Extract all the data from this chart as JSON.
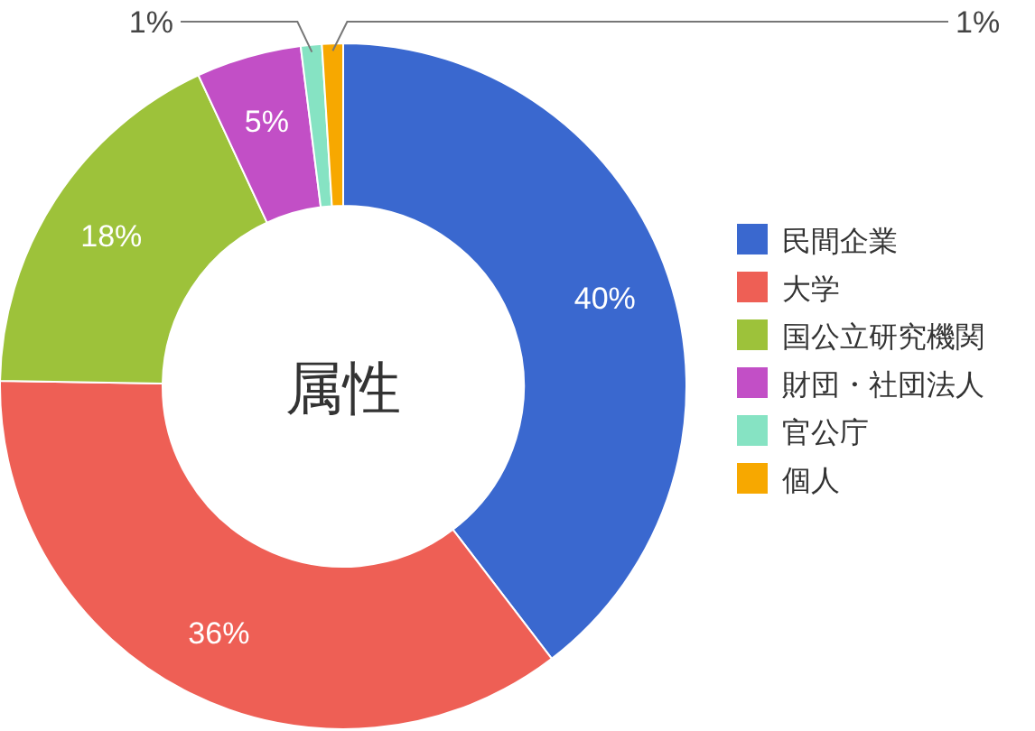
{
  "chart_data": {
    "type": "donut",
    "title": "属性",
    "categories": [
      "民間企業",
      "大学",
      "国公立研究機関",
      "財団・社団法人",
      "官公庁",
      "個人"
    ],
    "values": [
      40,
      36,
      18,
      5,
      1,
      1
    ],
    "colors": [
      "#3a68cf",
      "#ee5f55",
      "#9dc23a",
      "#c24fc6",
      "#86e3c3",
      "#f7a800"
    ],
    "value_labels": [
      "40%",
      "36%",
      "18%",
      "5%",
      "1%",
      "1%"
    ],
    "legend": "right"
  }
}
